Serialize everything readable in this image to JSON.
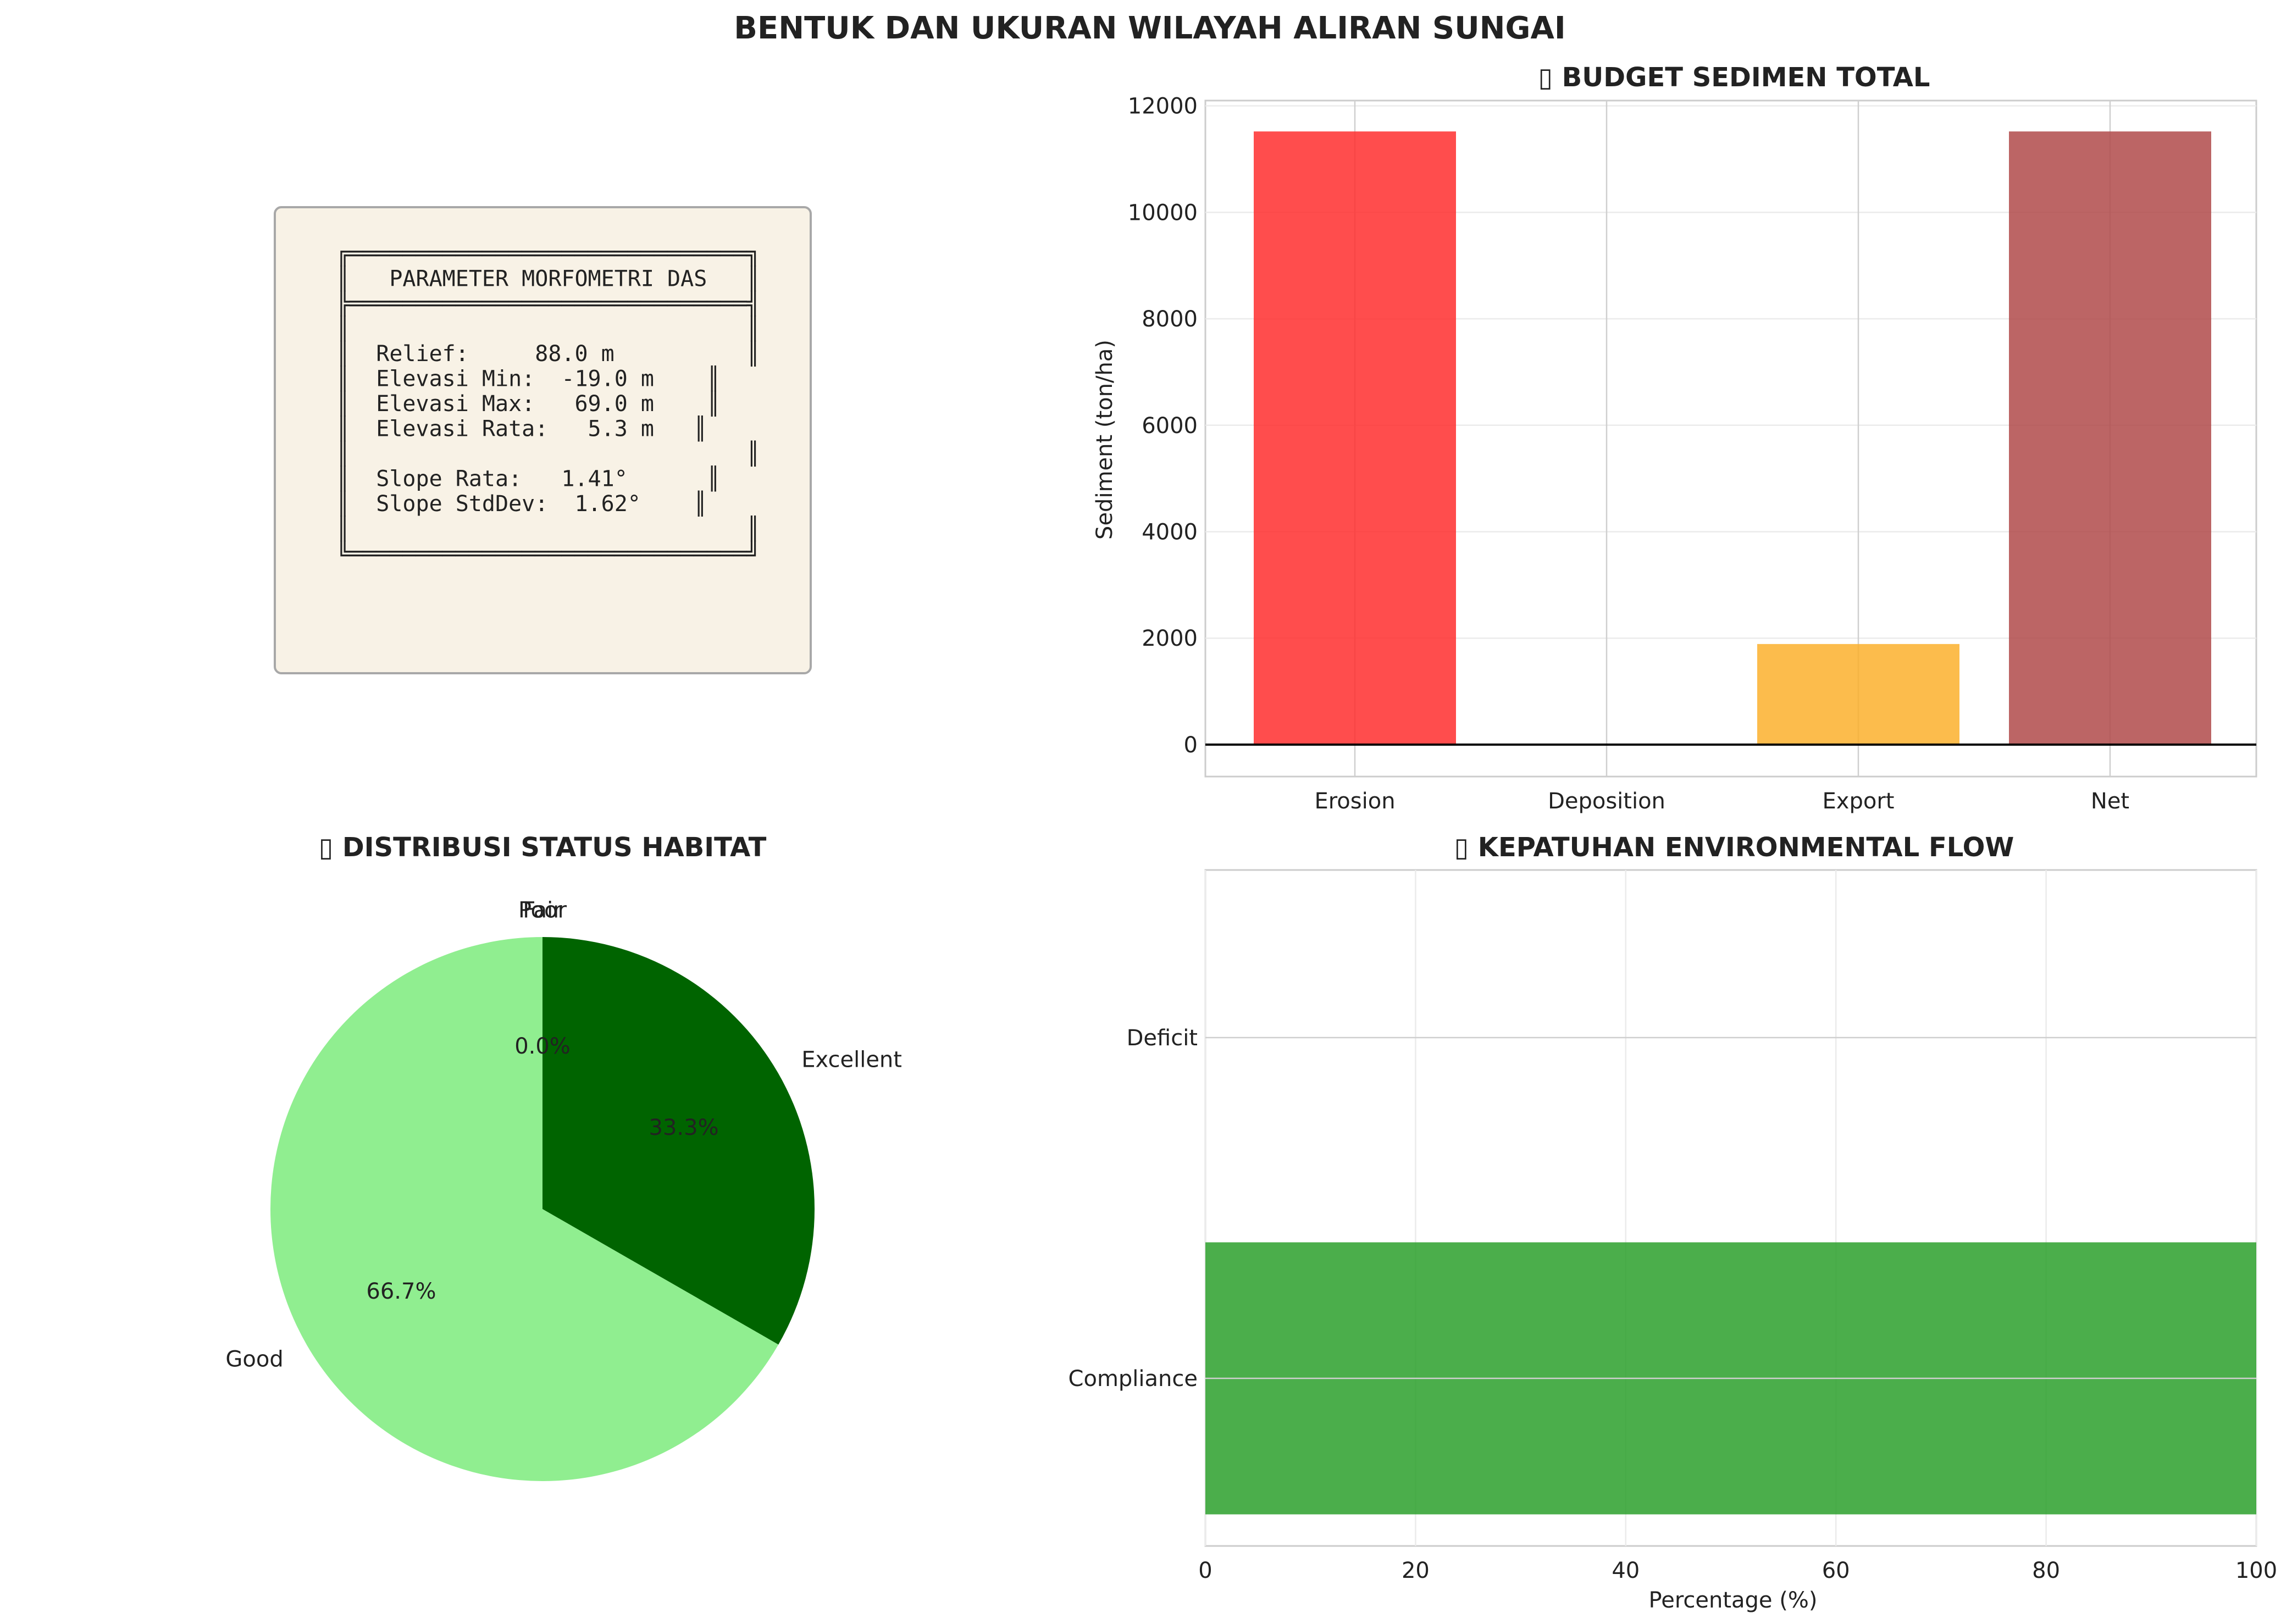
{
  "figure_title": "BENTUK DAN UKURAN WILAYAH ALIRAN SUNGAI",
  "param_box": {
    "lines": [
      "╔══════════════════════════════╗",
      "║   PARAMETER MORFOMETRI DAS   ║",
      "╠══════════════════════════════╣",
      "║                              ║",
      "║  Relief:     88.0 m          ║",
      "║  Elevasi Min:  -19.0 m    ║",
      "║  Elevasi Max:   69.0 m    ║",
      "║  Elevasi Rata:   5.3 m   ║",
      "║                              ║",
      "║  Slope Rata:   1.41°      ║",
      "║  Slope StdDev:  1.62°    ║",
      "║                              ║",
      "╚══════════════════════════════╝"
    ]
  },
  "chart_data": [
    {
      "type": "bar",
      "title": "▯ BUDGET SEDIMEN TOTAL",
      "categories": [
        "Erosion",
        "Deposition",
        "Export",
        "Net"
      ],
      "values": [
        11520,
        0,
        1890,
        11520
      ],
      "colors": [
        "#ff2e2e",
        "#3b74d6",
        "#fbb02d",
        "#b04a4a"
      ],
      "ylabel": "Sediment (ton/ha)",
      "xlabel": "",
      "ylim": [
        -600,
        12100
      ],
      "yticks": [
        0,
        2000,
        4000,
        6000,
        8000,
        10000,
        12000
      ],
      "grid": true
    },
    {
      "type": "pie",
      "title": "▯ DISTRIBUSI STATUS HABITAT",
      "slices": [
        {
          "label": "Excellent",
          "value": 33.3,
          "pct_label": "33.3%",
          "color": "#006400"
        },
        {
          "label": "Good",
          "value": 66.7,
          "pct_label": "66.7%",
          "color": "#90ee90"
        },
        {
          "label": "Fair",
          "value": 0.0,
          "pct_label": "0.0%",
          "color": "#ffd700"
        },
        {
          "label": "Poor",
          "value": 0.0,
          "pct_label": "0.0%",
          "color": "#ff6347"
        }
      ]
    },
    {
      "type": "bar",
      "orientation": "horizontal",
      "title": "▯ KEPATUHAN ENVIRONMENTAL FLOW",
      "categories": [
        "Compliance",
        "Deficit"
      ],
      "values": [
        100,
        0
      ],
      "colors": [
        "#2ca02c",
        "#d62728"
      ],
      "xlabel": "Percentage (%)",
      "ylabel": "",
      "xlim": [
        0,
        100
      ],
      "xticks": [
        0,
        20,
        40,
        60,
        80,
        100
      ],
      "grid": true
    }
  ]
}
